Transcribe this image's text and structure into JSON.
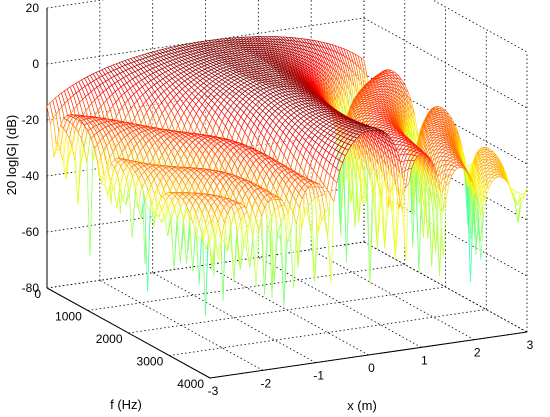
{
  "chart_data": {
    "type": "surface",
    "title": "",
    "xlabel": "x (m)",
    "ylabel": "f (Hz)",
    "zlabel": "20 log|G| (dB)",
    "xlim": [
      -3,
      3
    ],
    "ylim": [
      0,
      4000
    ],
    "zlim": [
      -80,
      20
    ],
    "x_ticks": [
      "-3",
      "-2",
      "-1",
      "0",
      "1",
      "2",
      "3"
    ],
    "y_ticks": [
      "0",
      "1000",
      "2000",
      "3000",
      "4000"
    ],
    "z_ticks": [
      "-80",
      "-60",
      "-40",
      "-20",
      "0",
      "20"
    ],
    "grid": true,
    "colormap": "jet",
    "peak_value_db": 0,
    "peak_location": {
      "x": 0,
      "f": 0
    },
    "sidelobe_level_db": -35,
    "null_depth_db": -75
  }
}
